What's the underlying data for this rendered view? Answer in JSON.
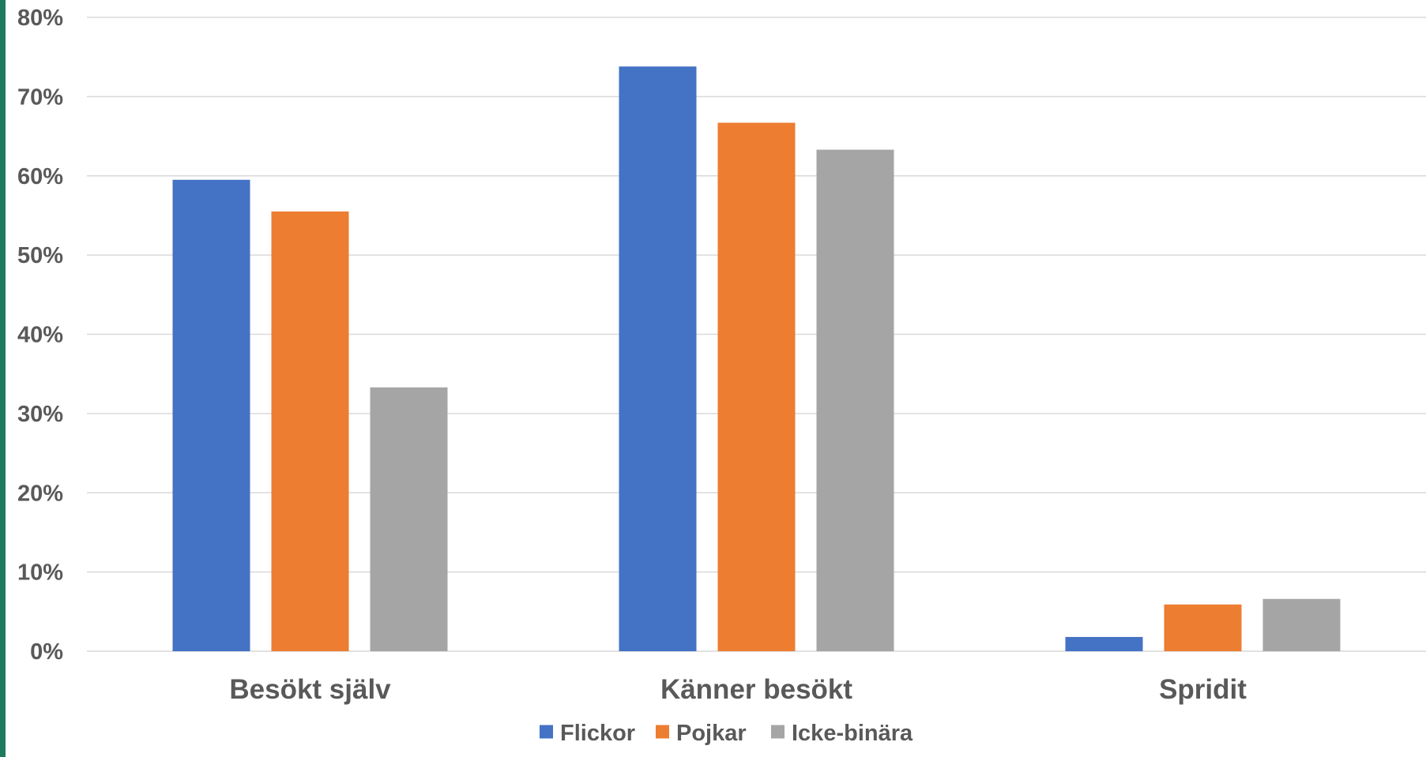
{
  "chart_data": {
    "type": "bar",
    "categories": [
      "Besökt själv",
      "Känner besökt",
      "Spridit"
    ],
    "series": [
      {
        "name": "Flickor",
        "color": "#4472C4",
        "values": [
          59.5,
          73.8,
          1.8
        ]
      },
      {
        "name": "Pojkar",
        "color": "#ED7D31",
        "values": [
          55.5,
          66.7,
          5.9
        ]
      },
      {
        "name": "Icke-binära",
        "color": "#A5A5A5",
        "values": [
          33.3,
          63.3,
          6.6
        ]
      }
    ],
    "ylim": [
      0,
      80
    ],
    "yticks": [
      "0%",
      "10%",
      "20%",
      "30%",
      "40%",
      "50%",
      "60%",
      "70%",
      "80%"
    ],
    "grid": true,
    "legend": "bottom-center"
  },
  "accent_color": "#1E7A5E",
  "grid_color": "#D9D9D9"
}
